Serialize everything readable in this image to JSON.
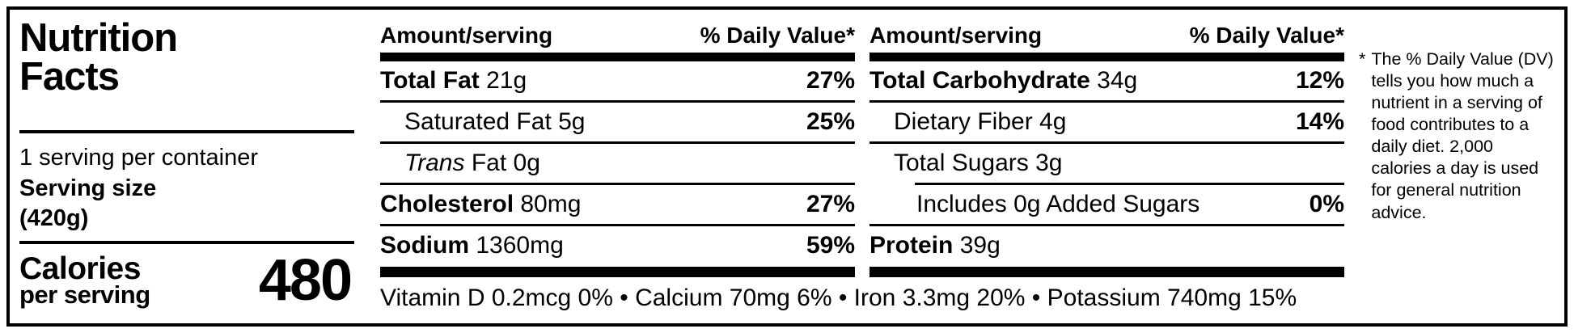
{
  "label": {
    "title": "Nutrition Facts",
    "servings_per_container": "1 serving per container",
    "serving_size_label": "Serving size",
    "serving_size_value": "(420g)",
    "calories_label": "Calories",
    "calories_sublabel": "per serving",
    "calories_value": "480"
  },
  "columns": [
    {
      "header_amount": "Amount/serving",
      "header_dv": "% Daily Value*",
      "rows": [
        {
          "label": "Total Fat",
          "amount": "21g",
          "dv": "27%",
          "bold": true,
          "indent": 0
        },
        {
          "label": "Saturated Fat",
          "amount": "5g",
          "dv": "25%",
          "bold": false,
          "indent": 1
        },
        {
          "label": "Fat",
          "italic_prefix": "Trans",
          "amount": "0g",
          "dv": "",
          "bold": false,
          "indent": 1
        },
        {
          "label": "Cholesterol",
          "amount": "80mg",
          "dv": "27%",
          "bold": true,
          "indent": 0
        },
        {
          "label": "Sodium",
          "amount": "1360mg",
          "dv": "59%",
          "bold": true,
          "indent": 0
        }
      ]
    },
    {
      "header_amount": "Amount/serving",
      "header_dv": "% Daily Value*",
      "rows": [
        {
          "label": "Total Carbohydrate",
          "amount": "34g",
          "dv": "12%",
          "bold": true,
          "indent": 0
        },
        {
          "label": "Dietary Fiber",
          "amount": "4g",
          "dv": "14%",
          "bold": false,
          "indent": 1
        },
        {
          "label": "Total Sugars",
          "amount": "3g",
          "dv": "",
          "bold": false,
          "indent": 1
        },
        {
          "label": "Includes 0g Added Sugars",
          "amount": "",
          "dv": "0%",
          "bold": false,
          "indent": 2,
          "rule_indent": true
        },
        {
          "label": "Protein",
          "amount": "39g",
          "dv": "",
          "bold": true,
          "indent": 0
        }
      ]
    }
  ],
  "vitamins": [
    "Vitamin D 0.2mcg 0%",
    "Calcium 70mg 6%",
    "Iron 3.3mg 20%",
    "Potassium 740mg 15%"
  ],
  "vitamins_separator": " • ",
  "footnote": {
    "marker": "*",
    "text": "The % Daily Value (DV) tells you how much a nutrient in a serving of food contributes to a daily diet. 2,000 calories a day is used for general nutrition advice."
  },
  "colors": {
    "ink": "#000000",
    "background": "#ffffff"
  }
}
